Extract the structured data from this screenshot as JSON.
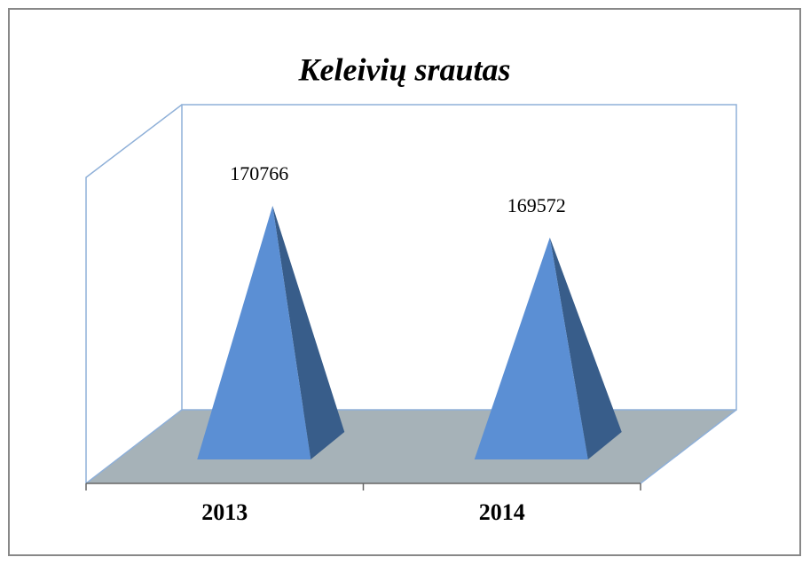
{
  "chart_data": {
    "type": "pyramid",
    "title": "Keleivių srautas",
    "categories": [
      "2013",
      "2014"
    ],
    "values": [
      170766,
      169572
    ],
    "color": "#5b8fd4",
    "side_color": "#385d8a",
    "floor_color": "#a6b2b8"
  }
}
